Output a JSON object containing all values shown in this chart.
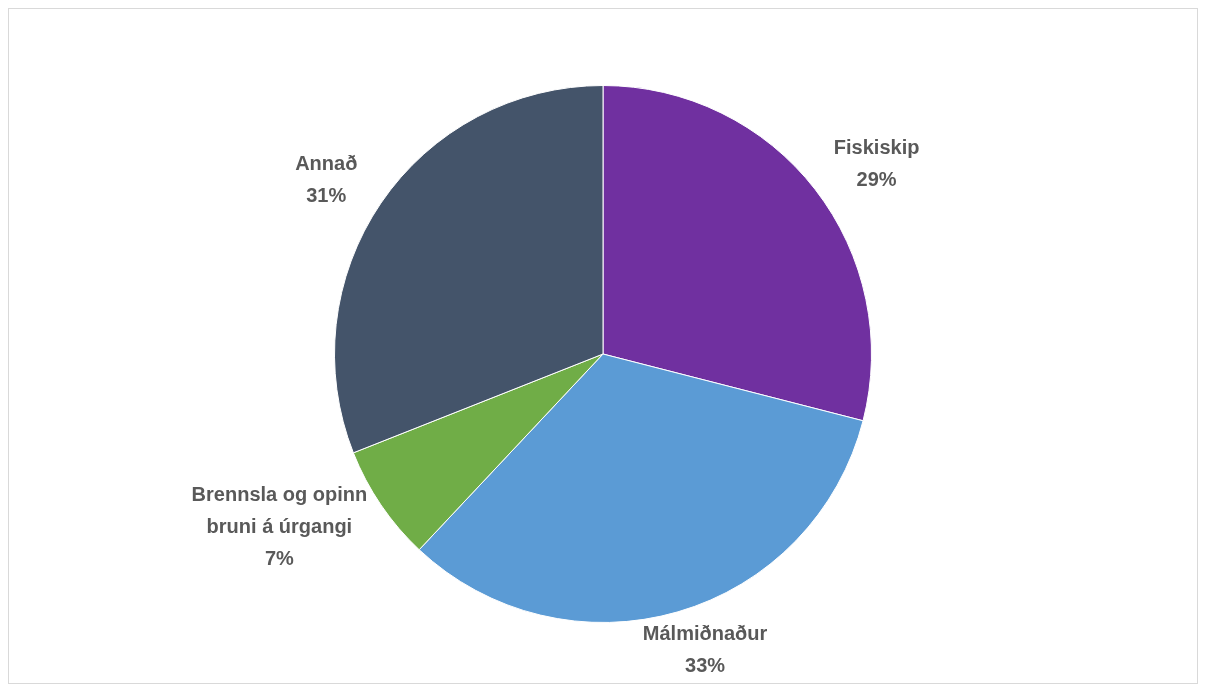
{
  "chart_data": {
    "type": "pie",
    "categories": [
      "Fiskiskip",
      "Málmiðnaður",
      "Brennsla og opinn bruni á úrgangi",
      "Annað"
    ],
    "values": [
      29,
      33,
      7,
      31
    ],
    "value_labels": [
      "29%",
      "33%",
      "7%",
      "31%"
    ],
    "colors": [
      "#7030a0",
      "#5b9bd5",
      "#70ad47",
      "#44546a"
    ],
    "legend": false
  }
}
